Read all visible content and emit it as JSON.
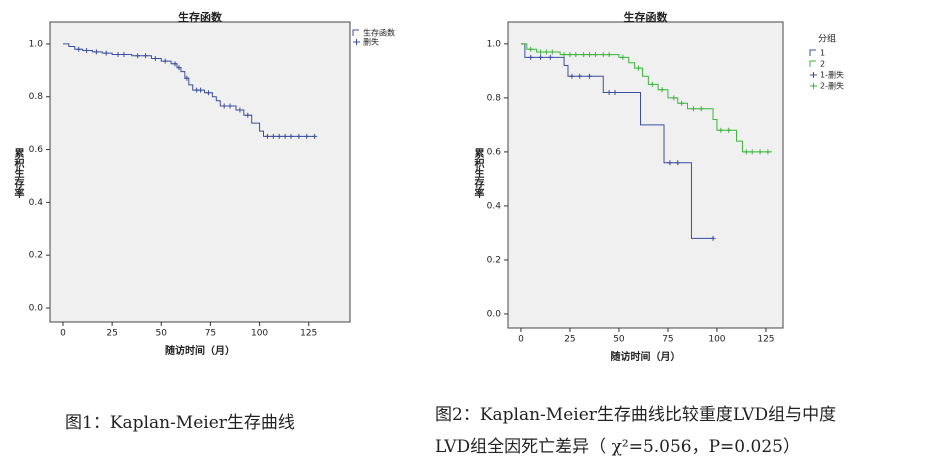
{
  "chart_data": [
    {
      "type": "km",
      "title": "生存函数",
      "x_label": "随访时间（月）",
      "y_label": "累积生存率",
      "xlim": [
        -6.6,
        146
      ],
      "ylim": [
        -0.053,
        1.083
      ],
      "xticks": [
        0,
        25,
        50,
        75,
        100,
        125
      ],
      "yticks": [
        {
          "value": 0.0,
          "label": "0.0"
        },
        {
          "value": 0.2,
          "label": "0.2"
        },
        {
          "value": 0.4,
          "label": "0.4"
        },
        {
          "value": 0.6,
          "label": "0.6"
        },
        {
          "value": 0.8,
          "label": "0.8"
        },
        {
          "value": 1.0,
          "label": "1.0"
        }
      ],
      "series": [
        {
          "name": "生存函数",
          "kind": "step",
          "color": "#3a4f9e",
          "x": [
            0,
            3,
            6,
            10,
            15,
            20,
            25,
            35,
            45,
            50,
            55,
            58,
            60,
            62,
            64,
            66,
            72,
            76,
            78,
            80,
            88,
            92,
            96,
            100,
            102,
            128
          ],
          "values": [
            1.0,
            0.99,
            0.98,
            0.975,
            0.97,
            0.965,
            0.96,
            0.955,
            0.945,
            0.935,
            0.925,
            0.91,
            0.895,
            0.87,
            0.845,
            0.825,
            0.815,
            0.8,
            0.785,
            0.765,
            0.75,
            0.73,
            0.7,
            0.67,
            0.65,
            0.65
          ]
        },
        {
          "name": "删失",
          "kind": "censor",
          "color": "#3a4f9e",
          "x": [
            8,
            12,
            17,
            22,
            28,
            31,
            38,
            42,
            47,
            52,
            57,
            59,
            63,
            68,
            70,
            74,
            82,
            85,
            90,
            94,
            104,
            107,
            110,
            113,
            116,
            120,
            124,
            128
          ],
          "values": [
            0.98,
            0.975,
            0.97,
            0.965,
            0.96,
            0.96,
            0.955,
            0.955,
            0.945,
            0.935,
            0.925,
            0.91,
            0.87,
            0.825,
            0.825,
            0.815,
            0.765,
            0.765,
            0.75,
            0.73,
            0.65,
            0.65,
            0.65,
            0.65,
            0.65,
            0.65,
            0.65,
            0.65
          ]
        }
      ]
    },
    {
      "type": "km",
      "title": "生存函数",
      "x_label": "随访时间（月）",
      "y_label": "累积生存率",
      "legend_title": "分组",
      "xlim": [
        -6.6,
        133.7
      ],
      "ylim": [
        -0.052,
        1.081
      ],
      "xticks": [
        0,
        25,
        50,
        75,
        100,
        125
      ],
      "yticks": [
        {
          "value": 0.0,
          "label": "0.0"
        },
        {
          "value": 0.2,
          "label": "0.2"
        },
        {
          "value": 0.4,
          "label": "0.4"
        },
        {
          "value": 0.6,
          "label": "0.6"
        },
        {
          "value": 0.8,
          "label": "0.8"
        },
        {
          "value": 1.0,
          "label": "1.0"
        }
      ],
      "series": [
        {
          "name": "1",
          "kind": "step",
          "color": "#3a4f9e",
          "x": [
            0,
            2,
            22,
            24,
            42,
            61,
            73,
            87,
            98
          ],
          "values": [
            1.0,
            0.95,
            0.92,
            0.88,
            0.82,
            0.7,
            0.56,
            0.28,
            0.28
          ]
        },
        {
          "name": "2",
          "kind": "step",
          "color": "#3cb43c",
          "x": [
            0,
            3,
            8,
            20,
            50,
            55,
            58,
            62,
            65,
            70,
            75,
            80,
            85,
            98,
            100,
            110,
            113,
            128
          ],
          "values": [
            1.0,
            0.98,
            0.97,
            0.96,
            0.95,
            0.93,
            0.91,
            0.88,
            0.85,
            0.83,
            0.8,
            0.78,
            0.76,
            0.72,
            0.68,
            0.64,
            0.6,
            0.6
          ]
        },
        {
          "name": "1-删失",
          "kind": "censor",
          "color": "#3a4f9e",
          "x": [
            5,
            10,
            15,
            26,
            30,
            35,
            45,
            48,
            76,
            80,
            98
          ],
          "values": [
            0.95,
            0.95,
            0.95,
            0.88,
            0.88,
            0.88,
            0.82,
            0.82,
            0.56,
            0.56,
            0.28
          ]
        },
        {
          "name": "2-删失",
          "kind": "censor",
          "color": "#3cb43c",
          "x": [
            5,
            10,
            13,
            16,
            22,
            25,
            28,
            32,
            35,
            38,
            42,
            45,
            52,
            60,
            67,
            72,
            78,
            82,
            88,
            92,
            102,
            106,
            115,
            118,
            122,
            126
          ],
          "values": [
            0.98,
            0.97,
            0.97,
            0.97,
            0.96,
            0.96,
            0.96,
            0.96,
            0.96,
            0.96,
            0.96,
            0.96,
            0.95,
            0.91,
            0.85,
            0.83,
            0.8,
            0.78,
            0.76,
            0.76,
            0.68,
            0.68,
            0.6,
            0.6,
            0.6,
            0.6
          ]
        }
      ]
    }
  ],
  "captions": [
    [
      "图1：Kaplan-Meier生存曲线"
    ],
    [
      "图2：Kaplan-Meier生存曲线比较重度LVD组与中度",
      "LVD组全因死亡差异（ χ²=5.056，P=0.025）"
    ]
  ]
}
